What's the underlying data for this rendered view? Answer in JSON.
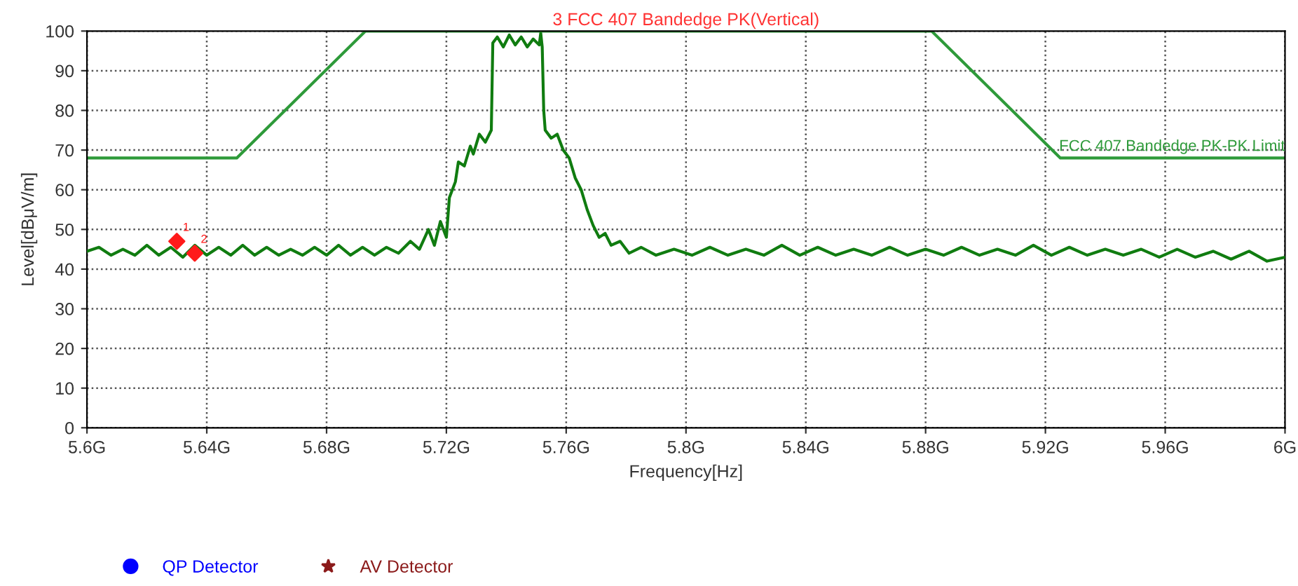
{
  "chart_data": {
    "type": "line",
    "title": "3 FCC 407 Bandedge PK(Vertical)",
    "xlabel": "Frequency[Hz]",
    "ylabel": "Level[dBμV/m]",
    "xlim": [
      5.6,
      6.0
    ],
    "ylim": [
      0,
      100
    ],
    "xticks": [
      {
        "value": 5.6,
        "label": "5.6G"
      },
      {
        "value": 5.64,
        "label": "5.64G"
      },
      {
        "value": 5.68,
        "label": "5.68G"
      },
      {
        "value": 5.72,
        "label": "5.72G"
      },
      {
        "value": 5.76,
        "label": "5.76G"
      },
      {
        "value": 5.8,
        "label": "5.8G"
      },
      {
        "value": 5.84,
        "label": "5.84G"
      },
      {
        "value": 5.88,
        "label": "5.88G"
      },
      {
        "value": 5.92,
        "label": "5.92G"
      },
      {
        "value": 5.96,
        "label": "5.96G"
      },
      {
        "value": 6.0,
        "label": "6G"
      }
    ],
    "yticks": [
      0,
      10,
      20,
      30,
      40,
      50,
      60,
      70,
      80,
      90,
      100
    ],
    "grid": true,
    "legend": "bottom",
    "series": [
      {
        "color": "#107c10",
        "x": [
          5.6,
          5.604,
          5.608,
          5.612,
          5.616,
          5.62,
          5.624,
          5.628,
          5.632,
          5.636,
          5.64,
          5.644,
          5.648,
          5.652,
          5.656,
          5.66,
          5.664,
          5.668,
          5.672,
          5.676,
          5.68,
          5.684,
          5.688,
          5.692,
          5.696,
          5.7,
          5.704,
          5.708,
          5.711,
          5.714,
          5.716,
          5.718,
          5.72,
          5.721,
          5.723,
          5.724,
          5.726,
          5.728,
          5.729,
          5.731,
          5.733,
          5.735,
          5.7355,
          5.737,
          5.739,
          5.741,
          5.743,
          5.745,
          5.747,
          5.749,
          5.751,
          5.7515,
          5.752,
          5.7525,
          5.753,
          5.755,
          5.757,
          5.759,
          5.761,
          5.763,
          5.765,
          5.767,
          5.769,
          5.771,
          5.773,
          5.775,
          5.778,
          5.781,
          5.785,
          5.79,
          5.796,
          5.802,
          5.808,
          5.814,
          5.82,
          5.826,
          5.832,
          5.838,
          5.844,
          5.85,
          5.856,
          5.862,
          5.868,
          5.874,
          5.88,
          5.886,
          5.892,
          5.898,
          5.904,
          5.91,
          5.916,
          5.922,
          5.928,
          5.934,
          5.94,
          5.946,
          5.952,
          5.958,
          5.964,
          5.97,
          5.976,
          5.982,
          5.988,
          5.994,
          6.0
        ],
        "values": [
          44.5,
          45.5,
          43.5,
          45,
          43.5,
          46,
          43.5,
          45.5,
          43,
          46,
          43.5,
          45.5,
          43.5,
          46,
          43.5,
          45.5,
          43.5,
          45,
          43.5,
          45.5,
          43.5,
          46,
          43.5,
          45.5,
          43.5,
          45.5,
          44,
          47,
          45,
          50,
          46,
          52,
          48,
          58,
          62,
          67,
          66,
          71,
          69,
          74,
          72,
          75,
          97,
          98.5,
          96,
          99,
          96.5,
          98.5,
          96,
          98,
          96.5,
          99.5,
          96,
          80,
          75,
          73,
          74,
          70,
          68,
          63,
          60,
          55,
          51,
          48,
          49,
          46,
          47,
          44,
          45.5,
          43.5,
          45,
          43.5,
          45.5,
          43.5,
          45,
          43.5,
          46,
          43.5,
          45.5,
          43.5,
          45,
          43.5,
          45.5,
          43.5,
          45,
          43.5,
          45.5,
          43.5,
          45,
          43.5,
          46,
          43.5,
          45.5,
          43.5,
          45,
          43.5,
          45,
          43,
          45,
          43,
          44.5,
          42.5,
          44.5,
          42,
          43
        ]
      },
      {
        "name": "FCC 407 Bandedge PK-PK Limit",
        "color": "#2e9a3a",
        "x": [
          5.6,
          5.65,
          5.693,
          5.882,
          5.925,
          6.0
        ],
        "values": [
          68,
          68,
          100,
          100,
          68,
          68
        ]
      },
      {
        "type": "scatter",
        "color": "#ff1a1a",
        "marker": "diamond",
        "x": [
          5.63,
          5.636
        ],
        "values": [
          47,
          44
        ]
      },
      {
        "type": "scatter",
        "name": "QP Detector",
        "color": "#0000ff",
        "marker": "circle"
      },
      {
        "type": "scatter",
        "name": "AV Detector",
        "color": "#8b1a1a",
        "marker": "star"
      }
    ],
    "annotations": [
      {
        "text": "1",
        "x": 5.632,
        "y": 49
      },
      {
        "text": "2",
        "x": 5.638,
        "y": 46
      }
    ]
  }
}
